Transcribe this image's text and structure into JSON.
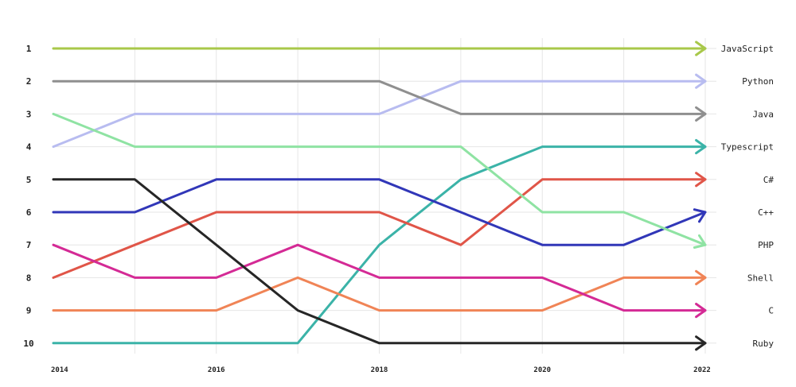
{
  "chart_data": {
    "type": "line",
    "title": "",
    "xlabel": "",
    "ylabel": "",
    "y_inverted": true,
    "ylim": [
      1,
      10
    ],
    "xlim": [
      2014,
      2022
    ],
    "x": [
      2014,
      2015,
      2016,
      2017,
      2018,
      2019,
      2020,
      2021,
      2022
    ],
    "x_tick_labels": [
      "2014",
      "2016",
      "2018",
      "2020",
      "2022"
    ],
    "y_tick_labels": [
      "1",
      "2",
      "3",
      "4",
      "5",
      "6",
      "7",
      "8",
      "9",
      "10"
    ],
    "grid": true,
    "legend": "right-end labels",
    "series": [
      {
        "name": "JavaScript",
        "color": "#a8c84a",
        "values": [
          1,
          1,
          1,
          1,
          1,
          1,
          1,
          1,
          1
        ]
      },
      {
        "name": "Python",
        "color": "#b8bcf0",
        "values": [
          4,
          3,
          3,
          3,
          3,
          2,
          2,
          2,
          2
        ]
      },
      {
        "name": "Java",
        "color": "#8f8f8f",
        "values": [
          2,
          2,
          2,
          2,
          2,
          3,
          3,
          3,
          3
        ]
      },
      {
        "name": "Typescript",
        "color": "#3bb3a8",
        "values": [
          10,
          10,
          10,
          10,
          7,
          5,
          4,
          4,
          4
        ]
      },
      {
        "name": "C#",
        "color": "#e05548",
        "values": [
          8,
          7,
          6,
          6,
          6,
          7,
          5,
          5,
          5
        ]
      },
      {
        "name": "C++",
        "color": "#3137b8",
        "values": [
          6,
          6,
          5,
          5,
          5,
          6,
          7,
          7,
          6
        ]
      },
      {
        "name": "PHP",
        "color": "#8fe3a3",
        "values": [
          3,
          4,
          4,
          4,
          4,
          4,
          6,
          6,
          7
        ]
      },
      {
        "name": "Shell",
        "color": "#f08456",
        "values": [
          9,
          9,
          9,
          8,
          9,
          9,
          9,
          8,
          8
        ]
      },
      {
        "name": "C",
        "color": "#d42a95",
        "values": [
          7,
          8,
          8,
          7,
          8,
          8,
          8,
          9,
          9
        ]
      },
      {
        "name": "Ruby",
        "color": "#262626",
        "values": [
          5,
          5,
          7,
          9,
          10,
          10,
          10,
          10,
          10
        ]
      }
    ]
  }
}
